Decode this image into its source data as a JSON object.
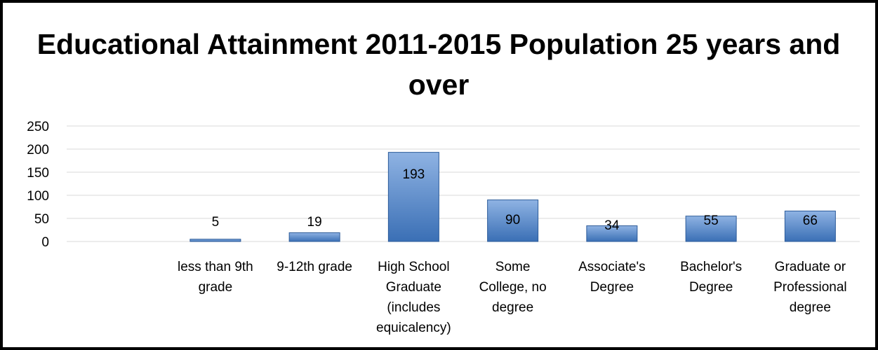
{
  "chart_data": {
    "type": "bar",
    "title": "Educational Attainment 2011-2015 Population 25 years and over",
    "categories": [
      "",
      "less than 9th grade",
      "9-12th grade",
      "High School Graduate (includes equicalency)",
      "Some College, no degree",
      "Associate's Degree",
      "Bachelor's Degree",
      "Graduate or Professional degree"
    ],
    "category_lines": [
      [],
      [
        "less than 9th",
        "grade"
      ],
      [
        "9-12th grade"
      ],
      [
        "High School",
        "Graduate",
        "(includes",
        "equicalency)"
      ],
      [
        "Some",
        "College, no",
        "degree"
      ],
      [
        "Associate's",
        "Degree"
      ],
      [
        "Bachelor's",
        "Degree"
      ],
      [
        "Graduate or",
        "Professional",
        "degree"
      ]
    ],
    "values": [
      null,
      5,
      19,
      193,
      90,
      34,
      55,
      66
    ],
    "data_labels": [
      "",
      "5",
      "19",
      "193",
      "90",
      "34",
      "55",
      "66"
    ],
    "yticks": [
      "0",
      "50",
      "100",
      "150",
      "200",
      "250"
    ],
    "ylim": [
      0,
      250
    ],
    "xlabel": "",
    "ylabel": "",
    "grid": true,
    "legend": "none",
    "colors": {
      "bar_top": "#8fb3e3",
      "bar_bottom": "#3a6fb5",
      "bar_edge": "#2c5b99",
      "grid": "#d9d9d9",
      "frame": "#000000"
    }
  }
}
